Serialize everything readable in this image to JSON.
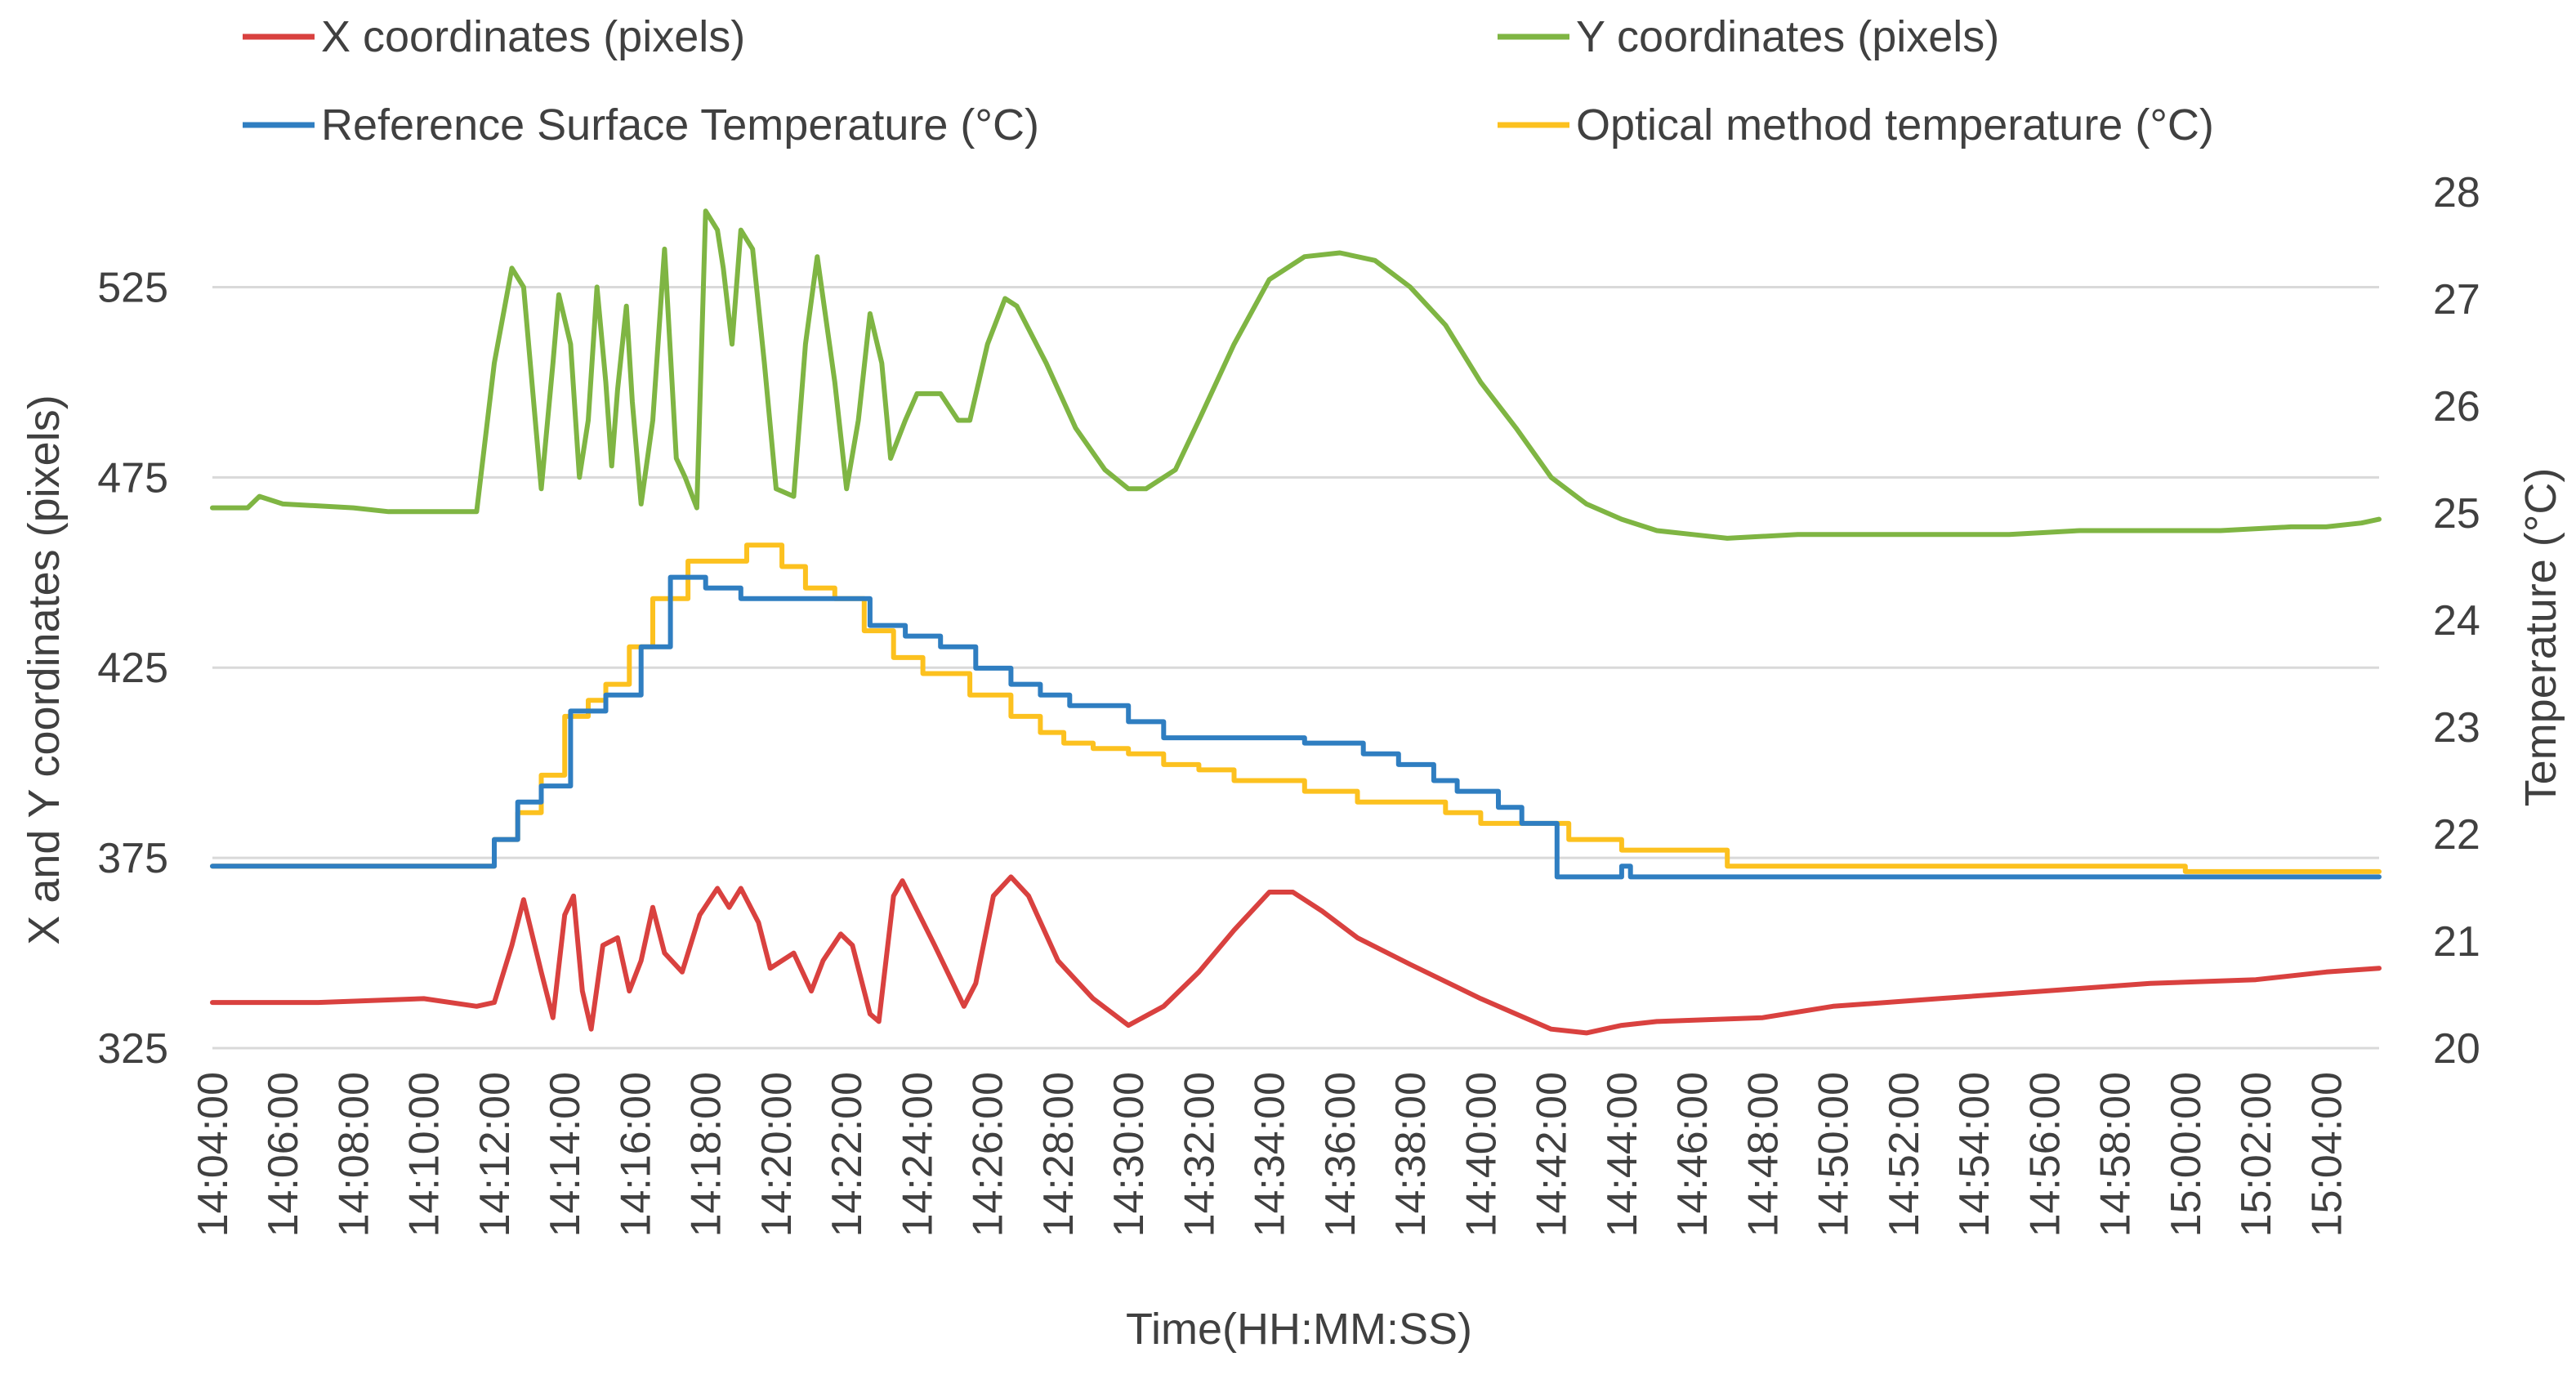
{
  "chart_data": {
    "type": "line",
    "title": "",
    "xlabel": "Time(HH:MM:SS)",
    "ylabel": "X and Y coordinates (pixels)",
    "y2label": "Temperature (°C)",
    "legend_position": "top",
    "grid": true,
    "xlim": [
      "14:04:00",
      "15:05:30"
    ],
    "ylim": [
      325,
      550
    ],
    "y2lim": [
      20,
      28
    ],
    "x_tick_labels": [
      "14:04:00",
      "14:06:00",
      "14:08:00",
      "14:10:00",
      "14:12:00",
      "14:14:00",
      "14:16:00",
      "14:18:00",
      "14:20:00",
      "14:22:00",
      "14:24:00",
      "14:26:00",
      "14:28:00",
      "14:30:00",
      "14:32:00",
      "14:34:00",
      "14:36:00",
      "14:38:00",
      "14:40:00",
      "14:42:00",
      "14:44:00",
      "14:46:00",
      "14:48:00",
      "14:50:00",
      "14:52:00",
      "14:54:00",
      "14:56:00",
      "14:58:00",
      "15:00:00",
      "15:02:00",
      "15:04:00"
    ],
    "y_tick_labels": [
      "325",
      "375",
      "425",
      "475",
      "525"
    ],
    "y2_tick_labels": [
      "20",
      "21",
      "22",
      "23",
      "24",
      "25",
      "26",
      "27",
      "28"
    ],
    "series": [
      {
        "name": "X coordinates (pixels)",
        "axis": "left",
        "color": "#d9413f",
        "step": false,
        "points": [
          [
            "14:04:00",
            337
          ],
          [
            "14:07:00",
            337
          ],
          [
            "14:10:00",
            338
          ],
          [
            "14:11:30",
            336
          ],
          [
            "14:12:00",
            337
          ],
          [
            "14:12:30",
            352
          ],
          [
            "14:12:50",
            364
          ],
          [
            "14:13:20",
            345
          ],
          [
            "14:13:40",
            333
          ],
          [
            "14:14:00",
            360
          ],
          [
            "14:14:15",
            365
          ],
          [
            "14:14:30",
            340
          ],
          [
            "14:14:45",
            330
          ],
          [
            "14:15:05",
            352
          ],
          [
            "14:15:30",
            354
          ],
          [
            "14:15:50",
            340
          ],
          [
            "14:16:10",
            348
          ],
          [
            "14:16:30",
            362
          ],
          [
            "14:16:50",
            350
          ],
          [
            "14:17:20",
            345
          ],
          [
            "14:17:50",
            360
          ],
          [
            "14:18:20",
            367
          ],
          [
            "14:18:40",
            362
          ],
          [
            "14:19:00",
            367
          ],
          [
            "14:19:30",
            358
          ],
          [
            "14:19:50",
            346
          ],
          [
            "14:20:30",
            350
          ],
          [
            "14:21:00",
            340
          ],
          [
            "14:21:20",
            348
          ],
          [
            "14:21:50",
            355
          ],
          [
            "14:22:10",
            352
          ],
          [
            "14:22:40",
            334
          ],
          [
            "14:22:55",
            332
          ],
          [
            "14:23:20",
            365
          ],
          [
            "14:23:35",
            369
          ],
          [
            "14:24:30",
            352
          ],
          [
            "14:25:20",
            336
          ],
          [
            "14:25:40",
            342
          ],
          [
            "14:26:10",
            365
          ],
          [
            "14:26:40",
            370
          ],
          [
            "14:27:10",
            365
          ],
          [
            "14:28:00",
            348
          ],
          [
            "14:29:00",
            338
          ],
          [
            "14:30:00",
            331
          ],
          [
            "14:31:00",
            336
          ],
          [
            "14:32:00",
            345
          ],
          [
            "14:33:00",
            356
          ],
          [
            "14:34:00",
            366
          ],
          [
            "14:34:40",
            366
          ],
          [
            "14:35:30",
            361
          ],
          [
            "14:36:30",
            354
          ],
          [
            "14:38:00",
            347
          ],
          [
            "14:40:00",
            338
          ],
          [
            "14:41:00",
            334
          ],
          [
            "14:42:00",
            330
          ],
          [
            "14:43:00",
            329
          ],
          [
            "14:44:00",
            331
          ],
          [
            "14:45:00",
            332
          ],
          [
            "14:48:00",
            333
          ],
          [
            "14:50:00",
            336
          ],
          [
            "14:53:00",
            338
          ],
          [
            "14:56:00",
            340
          ],
          [
            "14:59:00",
            342
          ],
          [
            "15:02:00",
            343
          ],
          [
            "15:04:00",
            345
          ],
          [
            "15:05:30",
            346
          ]
        ]
      },
      {
        "name": "Y coordinates (pixels)",
        "axis": "left",
        "color": "#7fb543",
        "step": false,
        "points": [
          [
            "14:04:00",
            467
          ],
          [
            "14:05:00",
            467
          ],
          [
            "14:05:20",
            470
          ],
          [
            "14:06:00",
            468
          ],
          [
            "14:08:00",
            467
          ],
          [
            "14:09:00",
            466
          ],
          [
            "14:11:00",
            466
          ],
          [
            "14:11:30",
            466
          ],
          [
            "14:12:00",
            505
          ],
          [
            "14:12:30",
            530
          ],
          [
            "14:12:50",
            525
          ],
          [
            "14:13:20",
            472
          ],
          [
            "14:13:40",
            505
          ],
          [
            "14:13:50",
            523
          ],
          [
            "14:14:10",
            510
          ],
          [
            "14:14:25",
            475
          ],
          [
            "14:14:40",
            490
          ],
          [
            "14:14:55",
            525
          ],
          [
            "14:15:10",
            500
          ],
          [
            "14:15:20",
            478
          ],
          [
            "14:15:30",
            498
          ],
          [
            "14:15:45",
            520
          ],
          [
            "14:15:55",
            495
          ],
          [
            "14:16:10",
            468
          ],
          [
            "14:16:30",
            490
          ],
          [
            "14:16:50",
            535
          ],
          [
            "14:17:10",
            480
          ],
          [
            "14:17:25",
            475
          ],
          [
            "14:17:45",
            467
          ],
          [
            "14:18:00",
            545
          ],
          [
            "14:18:20",
            540
          ],
          [
            "14:18:30",
            530
          ],
          [
            "14:18:45",
            510
          ],
          [
            "14:19:00",
            540
          ],
          [
            "14:19:20",
            535
          ],
          [
            "14:19:40",
            505
          ],
          [
            "14:20:00",
            472
          ],
          [
            "14:20:30",
            470
          ],
          [
            "14:20:50",
            510
          ],
          [
            "14:21:10",
            533
          ],
          [
            "14:21:40",
            500
          ],
          [
            "14:22:00",
            472
          ],
          [
            "14:22:20",
            490
          ],
          [
            "14:22:40",
            518
          ],
          [
            "14:23:00",
            505
          ],
          [
            "14:23:15",
            480
          ],
          [
            "14:23:40",
            490
          ],
          [
            "14:24:00",
            497
          ],
          [
            "14:24:40",
            497
          ],
          [
            "14:25:10",
            490
          ],
          [
            "14:25:30",
            490
          ],
          [
            "14:26:00",
            510
          ],
          [
            "14:26:30",
            522
          ],
          [
            "14:26:50",
            520
          ],
          [
            "14:27:40",
            505
          ],
          [
            "14:28:30",
            488
          ],
          [
            "14:29:20",
            477
          ],
          [
            "14:30:00",
            472
          ],
          [
            "14:30:30",
            472
          ],
          [
            "14:31:20",
            477
          ],
          [
            "14:32:00",
            490
          ],
          [
            "14:33:00",
            510
          ],
          [
            "14:34:00",
            527
          ],
          [
            "14:35:00",
            533
          ],
          [
            "14:36:00",
            534
          ],
          [
            "14:37:00",
            532
          ],
          [
            "14:38:00",
            525
          ],
          [
            "14:39:00",
            515
          ],
          [
            "14:40:00",
            500
          ],
          [
            "14:41:00",
            488
          ],
          [
            "14:42:00",
            475
          ],
          [
            "14:43:00",
            468
          ],
          [
            "14:44:00",
            464
          ],
          [
            "14:45:00",
            461
          ],
          [
            "14:46:00",
            460
          ],
          [
            "14:47:00",
            459
          ],
          [
            "14:49:00",
            460
          ],
          [
            "14:51:00",
            460
          ],
          [
            "14:53:00",
            460
          ],
          [
            "14:55:00",
            460
          ],
          [
            "14:57:00",
            461
          ],
          [
            "14:59:00",
            461
          ],
          [
            "15:01:00",
            461
          ],
          [
            "15:03:00",
            462
          ],
          [
            "15:04:00",
            462
          ],
          [
            "15:05:00",
            463
          ],
          [
            "15:05:30",
            464
          ]
        ]
      },
      {
        "name": "Reference Surface Temperature (°C)",
        "axis": "right",
        "color": "#2f7ec1",
        "step": true,
        "points": [
          [
            "14:04:00",
            21.7
          ],
          [
            "14:11:40",
            21.7
          ],
          [
            "14:12:00",
            21.95
          ],
          [
            "14:12:40",
            22.3
          ],
          [
            "14:13:20",
            22.45
          ],
          [
            "14:14:10",
            23.15
          ],
          [
            "14:15:10",
            23.3
          ],
          [
            "14:16:10",
            23.75
          ],
          [
            "14:17:00",
            24.4
          ],
          [
            "14:18:00",
            24.3
          ],
          [
            "14:19:00",
            24.2
          ],
          [
            "14:20:40",
            24.2
          ],
          [
            "14:22:40",
            23.95
          ],
          [
            "14:23:40",
            23.85
          ],
          [
            "14:24:40",
            23.75
          ],
          [
            "14:25:40",
            23.55
          ],
          [
            "14:26:40",
            23.4
          ],
          [
            "14:27:30",
            23.3
          ],
          [
            "14:28:20",
            23.2
          ],
          [
            "14:30:00",
            23.05
          ],
          [
            "14:31:00",
            22.9
          ],
          [
            "14:32:10",
            22.9
          ],
          [
            "14:33:50",
            22.9
          ],
          [
            "14:35:00",
            22.85
          ],
          [
            "14:36:40",
            22.75
          ],
          [
            "14:37:40",
            22.65
          ],
          [
            "14:38:40",
            22.5
          ],
          [
            "14:39:20",
            22.4
          ],
          [
            "14:40:30",
            22.25
          ],
          [
            "14:41:10",
            22.1
          ],
          [
            "14:42:10",
            21.6
          ],
          [
            "14:43:50",
            21.6
          ],
          [
            "14:44:00",
            21.7
          ],
          [
            "14:44:15",
            21.6
          ],
          [
            "14:45:00",
            21.6
          ],
          [
            "15:05:30",
            21.6
          ]
        ]
      },
      {
        "name": "Optical method temperature (°C)",
        "axis": "right",
        "color": "#fcc11f",
        "step": true,
        "points": [
          [
            "14:04:00",
            21.7
          ],
          [
            "14:11:40",
            21.7
          ],
          [
            "14:12:00",
            21.95
          ],
          [
            "14:12:40",
            22.2
          ],
          [
            "14:13:20",
            22.55
          ],
          [
            "14:14:00",
            23.1
          ],
          [
            "14:14:40",
            23.25
          ],
          [
            "14:15:10",
            23.4
          ],
          [
            "14:15:50",
            23.75
          ],
          [
            "14:16:30",
            24.2
          ],
          [
            "14:17:00",
            24.2
          ],
          [
            "14:17:30",
            24.55
          ],
          [
            "14:18:30",
            24.55
          ],
          [
            "14:19:10",
            24.7
          ],
          [
            "14:20:10",
            24.5
          ],
          [
            "14:20:50",
            24.3
          ],
          [
            "14:21:40",
            24.2
          ],
          [
            "14:22:30",
            23.9
          ],
          [
            "14:23:20",
            23.65
          ],
          [
            "14:24:10",
            23.5
          ],
          [
            "14:25:30",
            23.3
          ],
          [
            "14:26:40",
            23.1
          ],
          [
            "14:27:30",
            22.95
          ],
          [
            "14:28:10",
            22.85
          ],
          [
            "14:29:00",
            22.8
          ],
          [
            "14:30:00",
            22.75
          ],
          [
            "14:31:00",
            22.65
          ],
          [
            "14:32:00",
            22.6
          ],
          [
            "14:33:00",
            22.5
          ],
          [
            "14:35:00",
            22.4
          ],
          [
            "14:36:30",
            22.3
          ],
          [
            "14:39:00",
            22.2
          ],
          [
            "14:40:00",
            22.1
          ],
          [
            "14:42:30",
            21.95
          ],
          [
            "14:44:00",
            21.85
          ],
          [
            "14:47:00",
            21.7
          ],
          [
            "14:50:00",
            21.7
          ],
          [
            "14:53:00",
            21.7
          ],
          [
            "14:57:00",
            21.7
          ],
          [
            "15:00:00",
            21.65
          ],
          [
            "15:05:30",
            21.65
          ]
        ]
      }
    ]
  }
}
